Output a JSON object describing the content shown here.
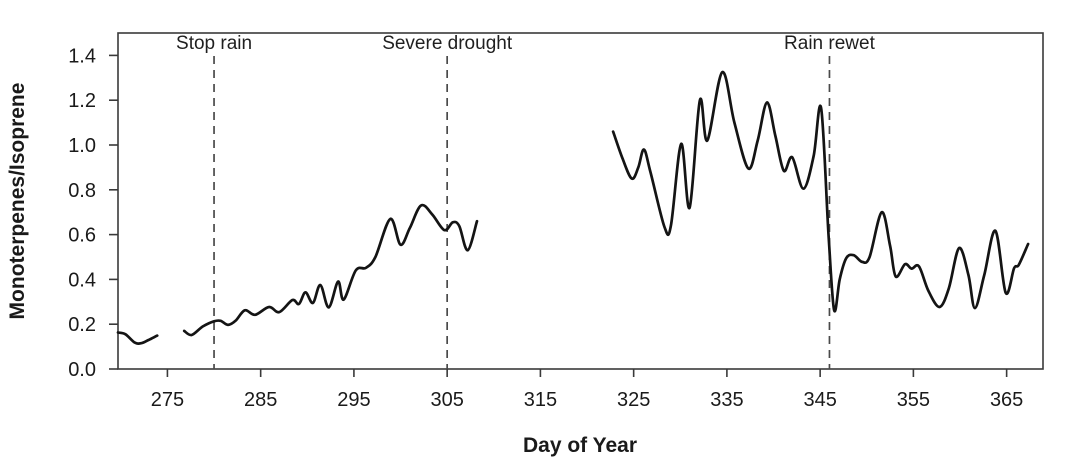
{
  "figure": {
    "background": "#ffffff",
    "curve_color": "#141414",
    "frame_color": "#3a3a3a",
    "event_line_color": "#4a4a4a",
    "text_color": "#1a1a1a"
  },
  "chart_data": {
    "type": "line",
    "title": "",
    "xlabel": "Day of Year",
    "ylabel": "Monoterpenes/Isoprene",
    "xlim": [
      269.7,
      368.9
    ],
    "ylim": [
      0,
      1.5
    ],
    "x_ticks": [
      275,
      285,
      295,
      305,
      315,
      325,
      335,
      345,
      355,
      365
    ],
    "y_ticks": [
      0.0,
      0.2,
      0.4,
      0.6,
      0.8,
      1.0,
      1.2,
      1.4
    ],
    "grid": false,
    "legend": null,
    "annotations": [
      {
        "label": "Stop rain",
        "day": 280
      },
      {
        "label": "Severe drought",
        "day": 305
      },
      {
        "label": "Rain rewet",
        "day": 346
      }
    ],
    "series": [
      {
        "name": "segment-1",
        "points": [
          [
            269.7,
            0.163
          ],
          [
            270.5,
            0.155
          ],
          [
            271.5,
            0.118
          ],
          [
            272.2,
            0.115
          ],
          [
            273.0,
            0.13
          ],
          [
            273.9,
            0.149
          ]
        ]
      },
      {
        "name": "segment-2",
        "points": [
          [
            276.8,
            0.17
          ],
          [
            277.6,
            0.152
          ],
          [
            278.8,
            0.19
          ],
          [
            280.0,
            0.213
          ],
          [
            280.7,
            0.215
          ],
          [
            281.5,
            0.197
          ],
          [
            282.3,
            0.215
          ],
          [
            283.3,
            0.262
          ],
          [
            284.4,
            0.242
          ],
          [
            285.9,
            0.277
          ],
          [
            287.0,
            0.254
          ],
          [
            288.4,
            0.308
          ],
          [
            289.1,
            0.29
          ],
          [
            289.8,
            0.342
          ],
          [
            290.6,
            0.295
          ],
          [
            291.4,
            0.375
          ],
          [
            292.3,
            0.275
          ],
          [
            293.3,
            0.39
          ],
          [
            293.9,
            0.31
          ],
          [
            295.2,
            0.44
          ],
          [
            296.3,
            0.452
          ],
          [
            297.3,
            0.5
          ],
          [
            298.9,
            0.67
          ],
          [
            300.0,
            0.555
          ],
          [
            301.0,
            0.63
          ],
          [
            302.2,
            0.73
          ],
          [
            303.4,
            0.69
          ],
          [
            304.7,
            0.62
          ],
          [
            305.6,
            0.655
          ],
          [
            306.3,
            0.638
          ],
          [
            307.2,
            0.53
          ],
          [
            308.2,
            0.66
          ]
        ]
      },
      {
        "name": "segment-3",
        "points": [
          [
            322.8,
            1.06
          ],
          [
            323.8,
            0.94
          ],
          [
            324.8,
            0.85
          ],
          [
            325.5,
            0.9
          ],
          [
            326.1,
            0.98
          ],
          [
            326.8,
            0.88
          ],
          [
            328.3,
            0.635
          ],
          [
            329.0,
            0.64
          ],
          [
            330.1,
            1.005
          ],
          [
            331.0,
            0.72
          ],
          [
            332.1,
            1.2
          ],
          [
            332.9,
            1.02
          ],
          [
            334.5,
            1.325
          ],
          [
            335.8,
            1.1
          ],
          [
            337.3,
            0.895
          ],
          [
            338.3,
            1.02
          ],
          [
            339.3,
            1.19
          ],
          [
            340.2,
            1.04
          ],
          [
            341.1,
            0.885
          ],
          [
            342.0,
            0.945
          ],
          [
            343.2,
            0.805
          ],
          [
            344.3,
            0.95
          ],
          [
            345.1,
            1.165
          ],
          [
            345.9,
            0.6
          ],
          [
            346.5,
            0.263
          ],
          [
            347.1,
            0.4
          ],
          [
            347.8,
            0.495
          ],
          [
            348.6,
            0.508
          ],
          [
            349.5,
            0.478
          ],
          [
            350.3,
            0.5
          ],
          [
            351.6,
            0.7
          ],
          [
            352.5,
            0.55
          ],
          [
            353.1,
            0.413
          ],
          [
            354.1,
            0.468
          ],
          [
            354.8,
            0.448
          ],
          [
            355.6,
            0.458
          ],
          [
            356.6,
            0.35
          ],
          [
            357.8,
            0.277
          ],
          [
            358.8,
            0.36
          ],
          [
            359.9,
            0.54
          ],
          [
            360.9,
            0.42
          ],
          [
            361.6,
            0.272
          ],
          [
            362.6,
            0.42
          ],
          [
            363.8,
            0.617
          ],
          [
            364.9,
            0.34
          ],
          [
            365.8,
            0.45
          ],
          [
            366.3,
            0.465
          ],
          [
            367.3,
            0.558
          ]
        ]
      }
    ]
  }
}
